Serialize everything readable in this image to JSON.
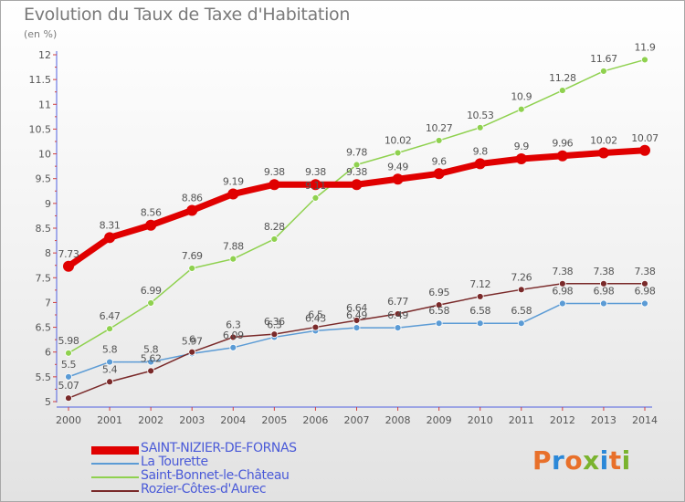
{
  "header": {
    "title": "Evolution du Taux de Taxe d'Habitation",
    "unit": "(en %)"
  },
  "logo": {
    "text": "Proxiti",
    "colors": [
      "#e8702a",
      "#2b88d8",
      "#e8702a",
      "#7ab32e",
      "#2b88d8",
      "#e8702a",
      "#7ab32e"
    ]
  },
  "chart_data": {
    "type": "line",
    "x": [
      "2000",
      "2001",
      "2002",
      "2003",
      "2004",
      "2005",
      "2006",
      "2007",
      "2008",
      "2009",
      "2010",
      "2011",
      "2012",
      "2013",
      "2014"
    ],
    "ylim": [
      5,
      12
    ],
    "yticks": [
      "5",
      "5.5",
      "6",
      "6.5",
      "7",
      "7.5",
      "8",
      "8.5",
      "9",
      "9.5",
      "10",
      "10.5",
      "11",
      "11.5",
      "12"
    ],
    "grid": false,
    "legend_position": "bottom",
    "series": [
      {
        "name": "SAINT-NIZIER-DE-FORNAS",
        "color": "#e00000",
        "values": [
          7.73,
          8.31,
          8.56,
          8.86,
          9.19,
          9.38,
          9.38,
          9.38,
          9.49,
          9.6,
          9.8,
          9.9,
          9.96,
          10.02,
          10.07
        ],
        "labels": [
          "7.73",
          "8.31",
          "8.56",
          "8.86",
          "9.19",
          "9.38",
          "9.38",
          "9.38",
          "9.49",
          "9.6",
          "9.8",
          "9.9",
          "9.96",
          "10.02",
          "10.07"
        ]
      },
      {
        "name": "La Tourette",
        "color": "#5b9bd5",
        "values": [
          5.5,
          5.8,
          5.8,
          5.97,
          6.09,
          6.3,
          6.43,
          6.49,
          6.49,
          6.58,
          6.58,
          6.58,
          6.98,
          6.98,
          6.98
        ],
        "labels": [
          "5.5",
          "5.8",
          "5.8",
          "5.97",
          "6.09",
          "6.3",
          "6.43",
          "6.49",
          "6.49",
          "6.58",
          "6.58",
          "6.58",
          "6.98",
          "6.98",
          "6.98"
        ]
      },
      {
        "name": "Saint-Bonnet-le-Château",
        "color": "#8fd14f",
        "values": [
          5.98,
          6.47,
          6.99,
          7.69,
          7.88,
          8.28,
          9.11,
          9.78,
          10.02,
          10.27,
          10.53,
          10.9,
          11.28,
          11.67,
          11.9
        ],
        "labels": [
          "5.98",
          "6.47",
          "6.99",
          "7.69",
          "7.88",
          "8.28",
          "9.11",
          "9.78",
          "10.02",
          "10.27",
          "10.53",
          "10.9",
          "11.28",
          "11.67",
          "11.9"
        ]
      },
      {
        "name": "Rozier-Côtes-d'Aurec",
        "color": "#7a2a2a",
        "values": [
          5.07,
          5.4,
          5.62,
          6.0,
          6.3,
          6.36,
          6.5,
          6.64,
          6.77,
          6.95,
          7.12,
          7.26,
          7.38,
          7.38,
          7.38
        ],
        "labels": [
          "5.07",
          "5.4",
          "5.62",
          "6",
          "6.3",
          "6.36",
          "6.5",
          "6.64",
          "6.77",
          "6.95",
          "7.12",
          "7.26",
          "7.38",
          "7.38",
          "7.38"
        ]
      }
    ]
  }
}
